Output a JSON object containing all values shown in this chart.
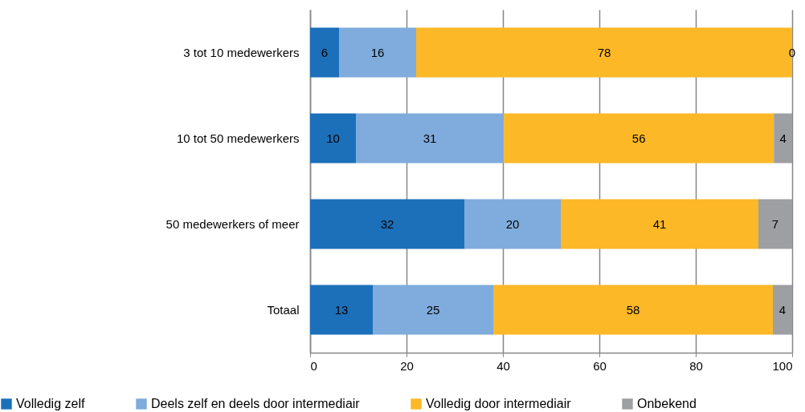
{
  "chart_data": {
    "type": "bar",
    "orientation": "horizontal",
    "stacked": true,
    "grid": "x",
    "legend": "bottom",
    "categories": [
      "3 tot 10 medewerkers",
      "10 tot 50 medewerkers",
      "50 medewerkers of meer",
      "Totaal"
    ],
    "xlim": [
      0,
      100
    ],
    "xticks": [
      0,
      20,
      40,
      60,
      80,
      100
    ],
    "series": [
      {
        "name": "Volledig zelf",
        "color": "#1c70ba",
        "values": [
          6,
          9.5,
          32,
          13
        ],
        "value_labels": [
          "6",
          "10",
          "32",
          "13"
        ]
      },
      {
        "name": "Deels zelf en deels door intermediair",
        "color": "#7facdc",
        "values": [
          16,
          30.7,
          20,
          25
        ],
        "value_labels": [
          "16",
          "31",
          "20",
          "25"
        ]
      },
      {
        "name": "Volledig door intermediair",
        "color": "#fdb827",
        "values": [
          78,
          56,
          41,
          58
        ],
        "value_labels": [
          "78",
          "56",
          "41",
          "58"
        ]
      },
      {
        "name": "Onbekend",
        "color": "#9d9fa3",
        "values": [
          0,
          3.8,
          7,
          4
        ],
        "value_labels": [
          "0",
          "4",
          "7",
          "4"
        ]
      }
    ]
  }
}
